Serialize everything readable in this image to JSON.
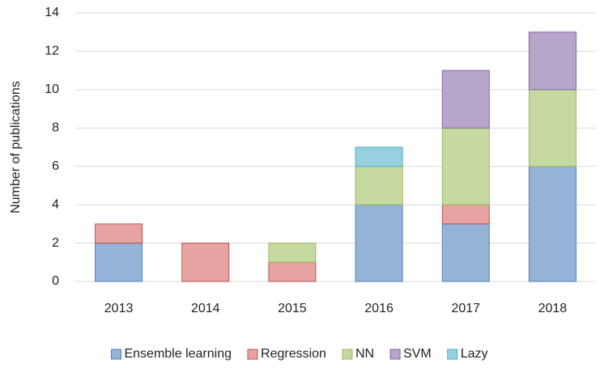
{
  "chart_data": {
    "type": "stacked_bar",
    "y_label": "Number of publications",
    "categories": [
      "2013",
      "2014",
      "2015",
      "2016",
      "2017",
      "2018"
    ],
    "series": [
      {
        "name": "Ensemble learning",
        "color": "#95b3d7",
        "edgecolor": "#4f81bd",
        "values": [
          2,
          0,
          0,
          4,
          3,
          6
        ]
      },
      {
        "name": "Regression",
        "color": "#e6a3a2",
        "edgecolor": "#c0504d",
        "values": [
          1,
          2,
          1,
          0,
          1,
          0
        ]
      },
      {
        "name": "NN",
        "color": "#c6d9a0",
        "edgecolor": "#9bbb59",
        "values": [
          0,
          0,
          1,
          2,
          4,
          4
        ]
      },
      {
        "name": "SVM",
        "color": "#b7a6cb",
        "edgecolor": "#8064a2",
        "values": [
          0,
          0,
          0,
          0,
          3,
          3
        ]
      },
      {
        "name": "Lazy",
        "color": "#98d0df",
        "edgecolor": "#4bacc6",
        "values": [
          0,
          0,
          0,
          1,
          0,
          0
        ]
      }
    ],
    "ylim": [
      0,
      14
    ],
    "yticks": [
      0,
      2,
      4,
      6,
      8,
      10,
      12,
      14
    ],
    "grid": true,
    "legend": "bottom"
  }
}
